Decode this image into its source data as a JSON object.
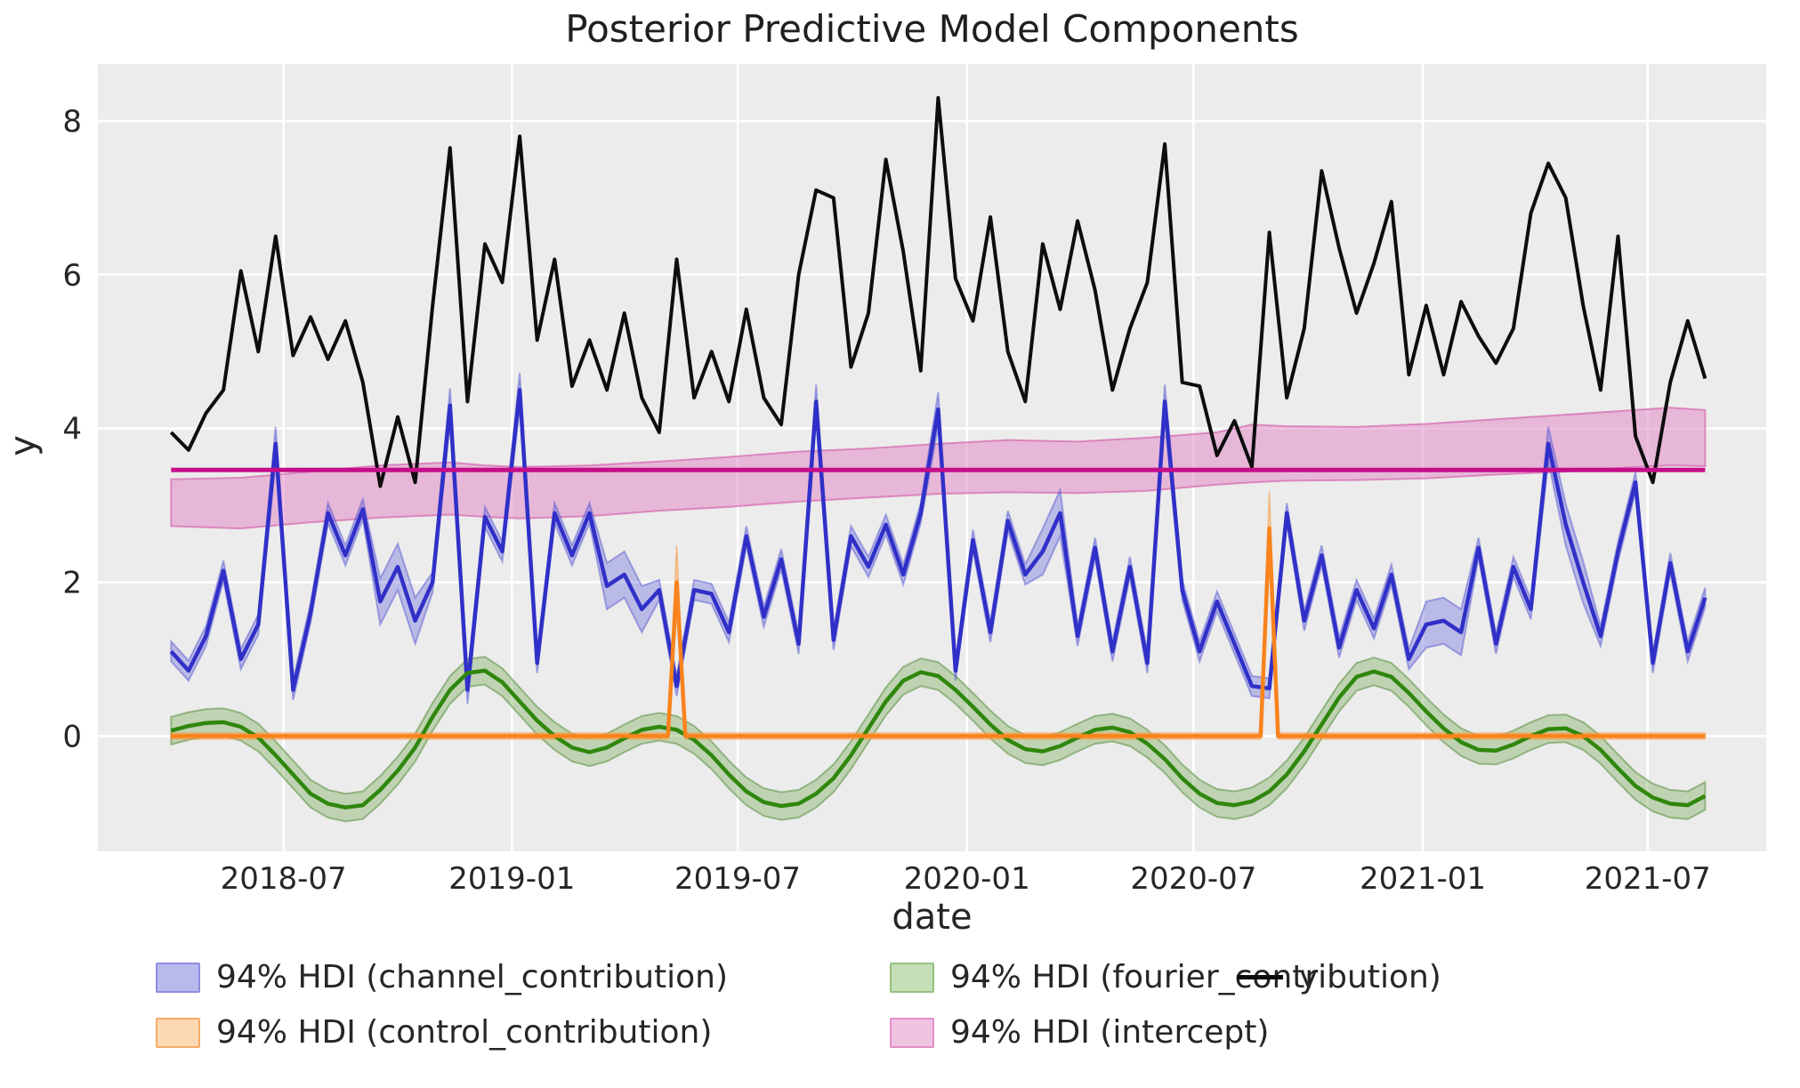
{
  "title": "Posterior Predictive Model Components",
  "axes": {
    "xlabel": "date",
    "ylabel": "y",
    "x_domain_weeks": [
      -8.4,
      183
    ],
    "y_domain": [
      -1.5,
      8.74
    ],
    "x_ticks": [
      {
        "week": 12.9,
        "label": "2018-07"
      },
      {
        "week": 39.1,
        "label": "2019-01"
      },
      {
        "week": 65.0,
        "label": "2019-07"
      },
      {
        "week": 91.3,
        "label": "2020-01"
      },
      {
        "week": 117.3,
        "label": "2020-07"
      },
      {
        "week": 143.6,
        "label": "2021-01"
      },
      {
        "week": 169.4,
        "label": "2021-07"
      }
    ],
    "y_ticks": [
      0,
      2,
      4,
      6,
      8
    ],
    "grid": true
  },
  "colors": {
    "plot_background": "#ececec",
    "grid": "#ffffff",
    "text": "#262626",
    "y_line": "#0d0d0d",
    "channel_line": "#3030c8",
    "channel_band": "rgba(105,105,220,0.38)",
    "channel_edge": "rgba(90,90,210,0.5)",
    "control_line": "#f9831c",
    "control_band": "rgba(250,170,90,0.45)",
    "control_edge": "rgba(247,150,60,0.55)",
    "fourier_line": "#2f870d",
    "fourier_band": "rgba(125,175,95,0.4)",
    "fourier_edge": "rgba(100,150,75,0.6)",
    "intercept_line": "#c50d89",
    "intercept_band": "rgba(223,129,193,0.5)",
    "intercept_edge": "rgba(212,95,170,0.65)"
  },
  "legend": {
    "items": [
      {
        "label": "94% HDI (channel_contribution)",
        "series": "channel",
        "swatch_fill": "#b9b9ee",
        "swatch_edge": "#8d8de0",
        "type": "patch"
      },
      {
        "label": "94% HDI (control_contribution)",
        "series": "control",
        "swatch_fill": "#fcd9b3",
        "swatch_edge": "#f5ab66",
        "type": "patch"
      },
      {
        "label": "94% HDI (fourier_contribution)",
        "series": "fourier",
        "swatch_fill": "#c6dfb7",
        "swatch_edge": "#95c07f",
        "type": "patch"
      },
      {
        "label": "94% HDI (intercept)",
        "series": "intercept",
        "swatch_fill": "#f0c3e1",
        "swatch_edge": "#e191c8",
        "type": "patch"
      },
      {
        "label": "y",
        "series": "y",
        "type": "line",
        "swatch_fill": "#0d0d0d"
      }
    ]
  },
  "chart_data": {
    "type": "line",
    "title": "Posterior Predictive Model Components",
    "xlabel": "date",
    "ylabel": "y",
    "x_unit": "weeks since start_date (biweekly sampling)",
    "start_date": "2018-04-02",
    "end_date": "2021-08-16",
    "weeks": [
      0,
      2,
      4,
      6,
      8,
      10,
      12,
      14,
      16,
      18,
      20,
      22,
      24,
      26,
      28,
      30,
      32,
      34,
      36,
      38,
      40,
      42,
      44,
      46,
      48,
      50,
      52,
      54,
      56,
      58,
      60,
      62,
      64,
      66,
      68,
      70,
      72,
      74,
      76,
      78,
      80,
      82,
      84,
      86,
      88,
      90,
      92,
      94,
      96,
      98,
      100,
      102,
      104,
      106,
      108,
      110,
      112,
      114,
      116,
      118,
      120,
      122,
      124,
      126,
      128,
      130,
      132,
      134,
      136,
      138,
      140,
      142,
      144,
      146,
      148,
      150,
      152,
      154,
      156,
      158,
      160,
      162,
      164,
      166,
      168,
      170,
      172,
      174,
      176
    ],
    "series": [
      {
        "name": "y",
        "style": "line",
        "values": [
          3.95,
          3.72,
          4.2,
          4.5,
          6.05,
          5.0,
          6.5,
          4.95,
          5.45,
          4.9,
          5.4,
          4.6,
          3.25,
          4.15,
          3.3,
          5.6,
          7.65,
          4.35,
          6.4,
          5.9,
          7.8,
          5.15,
          6.2,
          4.55,
          5.15,
          4.5,
          5.5,
          4.4,
          3.95,
          6.2,
          4.4,
          5.0,
          4.35,
          5.55,
          4.4,
          4.05,
          6.0,
          7.1,
          7.0,
          4.8,
          5.5,
          7.5,
          6.3,
          4.75,
          8.3,
          5.95,
          5.4,
          6.75,
          5.0,
          4.35,
          6.4,
          5.55,
          6.7,
          5.8,
          4.5,
          5.3,
          5.9,
          7.7,
          4.6,
          4.55,
          3.65,
          4.1,
          3.5,
          6.55,
          4.4,
          5.3,
          7.35,
          6.35,
          5.5,
          6.15,
          6.95,
          4.7,
          5.6,
          4.7,
          5.65,
          5.2,
          4.85,
          5.3,
          6.8,
          7.45,
          7.0,
          5.6,
          4.5,
          6.5,
          3.9,
          3.3,
          4.6,
          5.4,
          4.65
        ]
      },
      {
        "name": "channel_contribution",
        "style": "line+hdi",
        "hdi_label": "94% HDI (channel_contribution)",
        "values": [
          1.1,
          0.85,
          1.3,
          2.15,
          1.0,
          1.45,
          3.8,
          0.6,
          1.6,
          2.9,
          2.35,
          2.95,
          1.75,
          2.2,
          1.5,
          2.0,
          4.3,
          0.6,
          2.85,
          2.4,
          4.5,
          0.95,
          2.9,
          2.35,
          2.9,
          1.95,
          2.1,
          1.65,
          1.9,
          0.65,
          1.9,
          1.85,
          1.35,
          2.6,
          1.55,
          2.3,
          1.2,
          4.35,
          1.25,
          2.6,
          2.2,
          2.75,
          2.1,
          2.9,
          4.25,
          0.85,
          2.55,
          1.35,
          2.8,
          2.1,
          2.4,
          2.9,
          1.3,
          2.45,
          1.1,
          2.2,
          0.95,
          4.35,
          1.9,
          1.1,
          1.75,
          1.2,
          0.65,
          0.62,
          2.9,
          1.5,
          2.35,
          1.15,
          1.9,
          1.4,
          2.1,
          1.0,
          1.45,
          1.5,
          1.35,
          2.45,
          1.2,
          2.2,
          1.65,
          3.8,
          2.75,
          2.0,
          1.3,
          2.4,
          3.3,
          0.95,
          2.25,
          1.1,
          1.8
        ],
        "hdi_halfwidth": [
          0.13,
          0.13,
          0.13,
          0.13,
          0.13,
          0.13,
          0.22,
          0.13,
          0.13,
          0.13,
          0.13,
          0.13,
          0.3,
          0.3,
          0.3,
          0.13,
          0.22,
          0.18,
          0.13,
          0.13,
          0.22,
          0.13,
          0.13,
          0.13,
          0.13,
          0.3,
          0.3,
          0.3,
          0.13,
          0.13,
          0.13,
          0.13,
          0.13,
          0.13,
          0.13,
          0.13,
          0.13,
          0.22,
          0.13,
          0.13,
          0.13,
          0.13,
          0.13,
          0.13,
          0.22,
          0.13,
          0.13,
          0.13,
          0.13,
          0.13,
          0.3,
          0.3,
          0.13,
          0.13,
          0.13,
          0.13,
          0.13,
          0.22,
          0.13,
          0.13,
          0.13,
          0.13,
          0.13,
          0.13,
          0.13,
          0.13,
          0.13,
          0.13,
          0.13,
          0.13,
          0.13,
          0.13,
          0.3,
          0.3,
          0.3,
          0.13,
          0.13,
          0.13,
          0.13,
          0.22,
          0.27,
          0.27,
          0.13,
          0.13,
          0.13,
          0.13,
          0.13,
          0.13,
          0.13
        ]
      },
      {
        "name": "fourier_contribution",
        "style": "line+hdi",
        "hdi_label": "94% HDI (fourier_contribution)",
        "values": [
          0.07,
          0.13,
          0.17,
          0.18,
          0.12,
          -0.02,
          -0.25,
          -0.5,
          -0.75,
          -0.88,
          -0.93,
          -0.9,
          -0.7,
          -0.45,
          -0.15,
          0.25,
          0.6,
          0.82,
          0.85,
          0.7,
          0.45,
          0.2,
          0.0,
          -0.15,
          -0.21,
          -0.15,
          -0.03,
          0.08,
          0.12,
          0.08,
          -0.05,
          -0.25,
          -0.5,
          -0.72,
          -0.86,
          -0.91,
          -0.88,
          -0.75,
          -0.55,
          -0.25,
          0.1,
          0.45,
          0.72,
          0.83,
          0.78,
          0.6,
          0.38,
          0.15,
          -0.05,
          -0.17,
          -0.2,
          -0.13,
          -0.02,
          0.08,
          0.11,
          0.05,
          -0.1,
          -0.3,
          -0.55,
          -0.75,
          -0.87,
          -0.9,
          -0.85,
          -0.72,
          -0.5,
          -0.2,
          0.15,
          0.5,
          0.77,
          0.84,
          0.77,
          0.56,
          0.32,
          0.1,
          -0.08,
          -0.18,
          -0.19,
          -0.11,
          0.0,
          0.09,
          0.1,
          0.0,
          -0.18,
          -0.42,
          -0.65,
          -0.8,
          -0.88,
          -0.9,
          -0.78
        ],
        "hdi_halfwidth_constant": 0.18
      },
      {
        "name": "control_contribution",
        "style": "line+hdi",
        "hdi_label": "94% HDI (control_contribution)",
        "line_points": [
          [
            0,
            0
          ],
          [
            57,
            0
          ],
          [
            58,
            2.0
          ],
          [
            59,
            0
          ],
          [
            125,
            0
          ],
          [
            126,
            2.7
          ],
          [
            127,
            0
          ],
          [
            176,
            0
          ]
        ],
        "band_points": [
          [
            0,
            -0.04,
            0.04
          ],
          [
            57,
            -0.04,
            0.04
          ],
          [
            58,
            1.6,
            2.48
          ],
          [
            59,
            -0.04,
            0.04
          ],
          [
            125,
            -0.04,
            0.04
          ],
          [
            126,
            2.3,
            3.18
          ],
          [
            127,
            -0.04,
            0.04
          ],
          [
            176,
            -0.04,
            0.04
          ]
        ],
        "spike_dates": [
          "2019-05-13",
          "2020-08-31"
        ]
      },
      {
        "name": "intercept",
        "style": "line+hdi",
        "hdi_label": "94% HDI (intercept)",
        "line_points": [
          [
            0,
            3.46
          ],
          [
            176,
            3.46
          ]
        ],
        "band_points": [
          [
            0,
            2.73,
            3.34
          ],
          [
            8,
            2.7,
            3.36
          ],
          [
            16,
            2.78,
            3.44
          ],
          [
            24,
            2.84,
            3.52
          ],
          [
            32,
            2.88,
            3.56
          ],
          [
            36,
            2.85,
            3.52
          ],
          [
            40,
            2.83,
            3.5
          ],
          [
            48,
            2.86,
            3.52
          ],
          [
            56,
            2.93,
            3.57
          ],
          [
            64,
            2.98,
            3.63
          ],
          [
            72,
            3.05,
            3.7
          ],
          [
            80,
            3.1,
            3.74
          ],
          [
            88,
            3.15,
            3.8
          ],
          [
            96,
            3.17,
            3.85
          ],
          [
            104,
            3.16,
            3.83
          ],
          [
            112,
            3.19,
            3.88
          ],
          [
            120,
            3.27,
            3.95
          ],
          [
            124,
            3.3,
            4.05
          ],
          [
            128,
            3.32,
            4.03
          ],
          [
            136,
            3.33,
            4.02
          ],
          [
            144,
            3.35,
            4.06
          ],
          [
            152,
            3.4,
            4.12
          ],
          [
            160,
            3.44,
            4.18
          ],
          [
            168,
            3.5,
            4.24
          ],
          [
            172,
            3.52,
            4.27
          ],
          [
            176,
            3.51,
            4.24
          ]
        ]
      }
    ],
    "legend_position": "below",
    "hdi_level": "94%"
  }
}
